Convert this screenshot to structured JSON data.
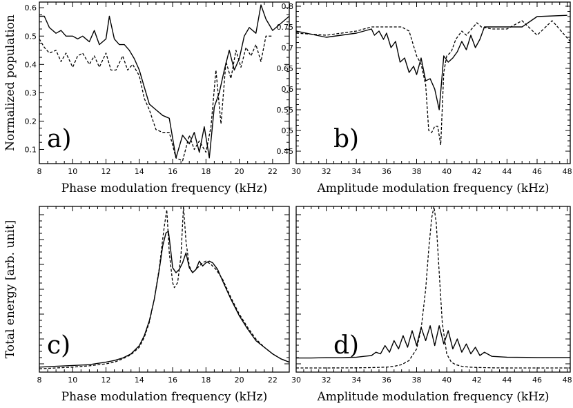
{
  "chart_data": [
    {
      "id": "a",
      "type": "line",
      "panel_label": "a)",
      "xlabel": "Phase modulation frequency (kHz)",
      "ylabel": "Normalized population",
      "xlim": [
        8,
        23
      ],
      "ylim": [
        0.05,
        0.62
      ],
      "xticks": [
        8,
        10,
        12,
        14,
        16,
        18,
        20,
        22
      ],
      "yticks": [
        0.1,
        0.2,
        0.3,
        0.4,
        0.5,
        0.6
      ],
      "ytick_labels": [
        "0.1",
        "0.2",
        "0.3",
        "0.4",
        "0.5",
        "0.6"
      ],
      "series": [
        {
          "style": "solid",
          "x": [
            8.0,
            8.3,
            8.6,
            9.0,
            9.3,
            9.6,
            10.0,
            10.3,
            10.6,
            11.0,
            11.3,
            11.6,
            12.0,
            12.2,
            12.5,
            12.8,
            13.1,
            13.4,
            13.7,
            14.0,
            14.3,
            14.6,
            15.0,
            15.4,
            15.8,
            16.2,
            16.6,
            17.0,
            17.3,
            17.6,
            17.9,
            18.2,
            18.5,
            18.8,
            19.1,
            19.4,
            19.7,
            20.0,
            20.3,
            20.6,
            21.0,
            21.3,
            21.6,
            22.0,
            23.0
          ],
          "y": [
            0.57,
            0.57,
            0.53,
            0.51,
            0.52,
            0.5,
            0.5,
            0.49,
            0.5,
            0.48,
            0.52,
            0.47,
            0.49,
            0.57,
            0.49,
            0.47,
            0.47,
            0.45,
            0.42,
            0.38,
            0.32,
            0.26,
            0.24,
            0.22,
            0.21,
            0.07,
            0.15,
            0.12,
            0.16,
            0.09,
            0.18,
            0.07,
            0.25,
            0.3,
            0.38,
            0.45,
            0.38,
            0.42,
            0.5,
            0.53,
            0.51,
            0.61,
            0.56,
            0.52,
            0.57
          ]
        },
        {
          "style": "dashed",
          "x": [
            8.0,
            8.3,
            8.6,
            9.0,
            9.3,
            9.6,
            10.0,
            10.3,
            10.6,
            11.0,
            11.3,
            11.6,
            12.0,
            12.3,
            12.6,
            13.0,
            13.3,
            13.6,
            14.0,
            14.3,
            14.6,
            15.0,
            15.4,
            15.8,
            16.2,
            16.6,
            17.0,
            17.3,
            17.6,
            18.0,
            18.3,
            18.6,
            18.9,
            19.2,
            19.5,
            19.8,
            20.1,
            20.4,
            20.7,
            21.0,
            21.3,
            21.6,
            22.0
          ],
          "y": [
            0.49,
            0.46,
            0.44,
            0.45,
            0.41,
            0.44,
            0.39,
            0.43,
            0.44,
            0.4,
            0.43,
            0.39,
            0.44,
            0.38,
            0.38,
            0.43,
            0.38,
            0.4,
            0.36,
            0.28,
            0.24,
            0.17,
            0.16,
            0.16,
            0.07,
            0.06,
            0.15,
            0.1,
            0.13,
            0.09,
            0.18,
            0.38,
            0.19,
            0.41,
            0.35,
            0.45,
            0.39,
            0.46,
            0.43,
            0.47,
            0.41,
            0.5,
            0.5
          ]
        }
      ]
    },
    {
      "id": "b",
      "type": "line",
      "panel_label": "b)",
      "xlabel": "Amplitude modulation frequency (kHz)",
      "ylabel": "",
      "xlim": [
        30,
        48.2
      ],
      "ylim": [
        0.42,
        0.81
      ],
      "xticks": [
        30,
        32,
        34,
        36,
        38,
        40,
        42,
        44,
        46,
        48
      ],
      "yticks": [
        0.45,
        0.5,
        0.55,
        0.6,
        0.65,
        0.7,
        0.75,
        0.8
      ],
      "ytick_labels": [
        "0.45",
        "0.5",
        "0.55",
        "0.6",
        "0.65",
        "0.7",
        "0.75",
        "0.8"
      ],
      "series": [
        {
          "style": "solid",
          "x": [
            30.0,
            32.0,
            34.0,
            35.0,
            35.2,
            35.5,
            35.8,
            36.0,
            36.3,
            36.6,
            36.9,
            37.2,
            37.5,
            37.8,
            38.0,
            38.3,
            38.6,
            38.9,
            39.2,
            39.5,
            39.8,
            40.1,
            40.4,
            40.7,
            41.0,
            41.3,
            41.6,
            41.9,
            42.2,
            42.5,
            43.0,
            45.0,
            46.0,
            48.0
          ],
          "y": [
            0.74,
            0.725,
            0.735,
            0.745,
            0.73,
            0.74,
            0.72,
            0.735,
            0.7,
            0.715,
            0.665,
            0.675,
            0.64,
            0.655,
            0.635,
            0.675,
            0.62,
            0.625,
            0.6,
            0.55,
            0.68,
            0.665,
            0.675,
            0.69,
            0.715,
            0.695,
            0.73,
            0.7,
            0.72,
            0.75,
            0.75,
            0.75,
            0.775,
            0.778
          ]
        },
        {
          "style": "dashed",
          "x": [
            30.0,
            32.0,
            34.0,
            35.0,
            36.0,
            37.0,
            37.5,
            38.0,
            38.3,
            38.6,
            38.8,
            39.0,
            39.2,
            39.4,
            39.6,
            39.8,
            40.0,
            40.3,
            40.6,
            41.0,
            41.3,
            42.0,
            42.3,
            43.0,
            44.0,
            45.0,
            46.0,
            47.0,
            48.2
          ],
          "y": [
            0.735,
            0.73,
            0.74,
            0.75,
            0.75,
            0.75,
            0.74,
            0.68,
            0.66,
            0.61,
            0.5,
            0.495,
            0.51,
            0.51,
            0.465,
            0.64,
            0.68,
            0.69,
            0.72,
            0.74,
            0.73,
            0.76,
            0.75,
            0.745,
            0.745,
            0.765,
            0.73,
            0.765,
            0.715
          ]
        }
      ]
    },
    {
      "id": "c",
      "type": "line",
      "panel_label": "c)",
      "xlabel": "Phase modulation frequency (kHz)",
      "ylabel": "Total energy [arb. unit]",
      "xlim": [
        8,
        23
      ],
      "ylim": [
        0,
        1.0
      ],
      "xticks": [
        8,
        10,
        12,
        14,
        16,
        18,
        20,
        22
      ],
      "yticks": [
        0.05,
        0.2,
        0.35,
        0.5,
        0.65,
        0.8,
        0.95
      ],
      "ytick_labels": [],
      "series": [
        {
          "style": "solid",
          "x": [
            8.0,
            9.0,
            10.0,
            11.0,
            12.0,
            12.5,
            13.0,
            13.5,
            14.0,
            14.3,
            14.6,
            14.9,
            15.2,
            15.4,
            15.6,
            15.75,
            15.9,
            16.0,
            16.2,
            16.4,
            16.6,
            16.8,
            17.0,
            17.2,
            17.4,
            17.6,
            17.8,
            18.0,
            18.2,
            18.4,
            18.7,
            19.0,
            19.5,
            20.0,
            20.5,
            21.0,
            21.5,
            22.0,
            22.5,
            23.0
          ],
          "y": [
            0.03,
            0.035,
            0.04,
            0.045,
            0.06,
            0.07,
            0.085,
            0.11,
            0.16,
            0.22,
            0.31,
            0.44,
            0.62,
            0.76,
            0.84,
            0.85,
            0.72,
            0.63,
            0.6,
            0.62,
            0.66,
            0.72,
            0.63,
            0.6,
            0.62,
            0.67,
            0.64,
            0.66,
            0.67,
            0.66,
            0.62,
            0.55,
            0.44,
            0.34,
            0.26,
            0.19,
            0.15,
            0.11,
            0.08,
            0.06
          ]
        },
        {
          "style": "dashed",
          "x": [
            8.0,
            9.0,
            10.0,
            11.0,
            12.0,
            12.5,
            13.0,
            13.5,
            14.0,
            14.3,
            14.6,
            14.9,
            15.2,
            15.4,
            15.5,
            15.65,
            15.8,
            16.0,
            16.1,
            16.3,
            16.5,
            16.65,
            16.8,
            17.0,
            17.2,
            17.4,
            17.6,
            17.8,
            18.0,
            18.3,
            18.6,
            19.0,
            19.5,
            20.0,
            20.5,
            21.0,
            21.5,
            22.0,
            22.5,
            23.0
          ],
          "y": [
            0.02,
            0.025,
            0.03,
            0.038,
            0.05,
            0.06,
            0.08,
            0.105,
            0.15,
            0.21,
            0.3,
            0.44,
            0.63,
            0.8,
            0.88,
            0.98,
            0.72,
            0.54,
            0.51,
            0.54,
            0.7,
            1.0,
            0.79,
            0.64,
            0.6,
            0.62,
            0.64,
            0.66,
            0.67,
            0.65,
            0.62,
            0.56,
            0.45,
            0.35,
            0.27,
            0.2,
            0.15,
            0.11,
            0.08,
            0.06
          ]
        }
      ]
    },
    {
      "id": "d",
      "type": "line",
      "panel_label": "d)",
      "xlabel": "Amplitude modulation frequency (kHz)",
      "ylabel": "",
      "xlim": [
        30,
        48.2
      ],
      "ylim": [
        0,
        1.0
      ],
      "xticks": [
        30,
        32,
        34,
        36,
        38,
        40,
        42,
        44,
        46,
        48
      ],
      "yticks": [
        0.05,
        0.2,
        0.35,
        0.5,
        0.65,
        0.8,
        0.95
      ],
      "ytick_labels": [],
      "series": [
        {
          "style": "solid",
          "x": [
            30.0,
            31.0,
            32.0,
            33.0,
            34.0,
            34.5,
            35.0,
            35.3,
            35.6,
            35.9,
            36.2,
            36.5,
            36.8,
            37.1,
            37.4,
            37.7,
            38.0,
            38.3,
            38.6,
            38.9,
            39.2,
            39.5,
            39.8,
            40.1,
            40.4,
            40.7,
            41.0,
            41.3,
            41.6,
            41.9,
            42.2,
            42.5,
            43.0,
            44.0,
            46.0,
            48.2
          ],
          "y": [
            0.085,
            0.085,
            0.087,
            0.087,
            0.09,
            0.095,
            0.1,
            0.12,
            0.11,
            0.16,
            0.12,
            0.19,
            0.14,
            0.22,
            0.15,
            0.25,
            0.16,
            0.27,
            0.19,
            0.28,
            0.16,
            0.28,
            0.17,
            0.25,
            0.14,
            0.2,
            0.12,
            0.17,
            0.11,
            0.15,
            0.1,
            0.12,
            0.095,
            0.09,
            0.088,
            0.088
          ]
        },
        {
          "style": "dashed",
          "x": [
            30.0,
            32.0,
            34.0,
            35.0,
            36.0,
            36.5,
            37.0,
            37.5,
            38.0,
            38.3,
            38.6,
            38.8,
            39.0,
            39.15,
            39.3,
            39.5,
            39.7,
            40.0,
            40.3,
            40.6,
            41.0,
            41.5,
            42.0,
            43.0,
            44.0,
            46.0,
            48.2
          ],
          "y": [
            0.025,
            0.025,
            0.026,
            0.027,
            0.03,
            0.035,
            0.045,
            0.07,
            0.14,
            0.26,
            0.5,
            0.74,
            0.93,
            1.0,
            0.9,
            0.6,
            0.3,
            0.11,
            0.06,
            0.045,
            0.035,
            0.03,
            0.028,
            0.026,
            0.025,
            0.025,
            0.025
          ]
        }
      ]
    }
  ]
}
